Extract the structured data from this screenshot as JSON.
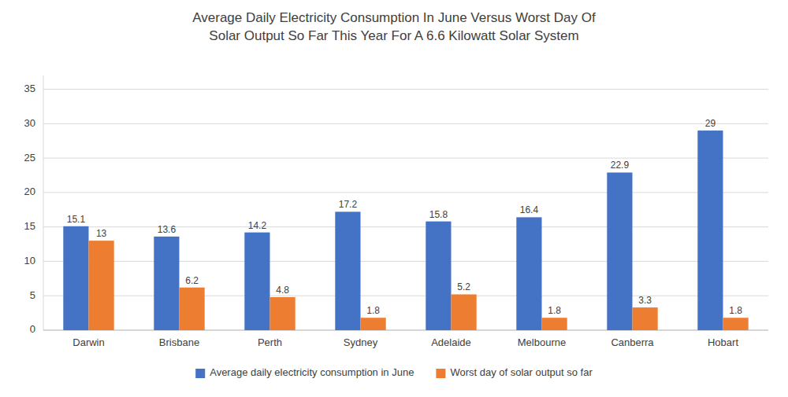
{
  "chart_data": {
    "type": "bar",
    "title": "Average Daily Electricity Consumption In June Versus Worst Day Of\nSolar Output So Far This Year For A 6.6 Kilowatt Solar System",
    "categories": [
      "Darwin",
      "Brisbane",
      "Perth",
      "Sydney",
      "Adelaide",
      "Melbourne",
      "Canberra",
      "Hobart"
    ],
    "series": [
      {
        "name": "Average daily electricity consumption in June",
        "color": "#4472C4",
        "values": [
          15.1,
          13.6,
          14.2,
          17.2,
          15.8,
          16.4,
          22.9,
          29
        ]
      },
      {
        "name": "Worst day of solar output so far",
        "color": "#ED7D31",
        "values": [
          13,
          6.2,
          4.8,
          1.8,
          5.2,
          1.8,
          3.3,
          1.8
        ]
      }
    ],
    "ylim": [
      0,
      37
    ],
    "yticks": [
      0,
      5,
      10,
      15,
      20,
      25,
      30,
      35
    ],
    "grid": true,
    "legend": "bottom",
    "data_labels": true
  }
}
